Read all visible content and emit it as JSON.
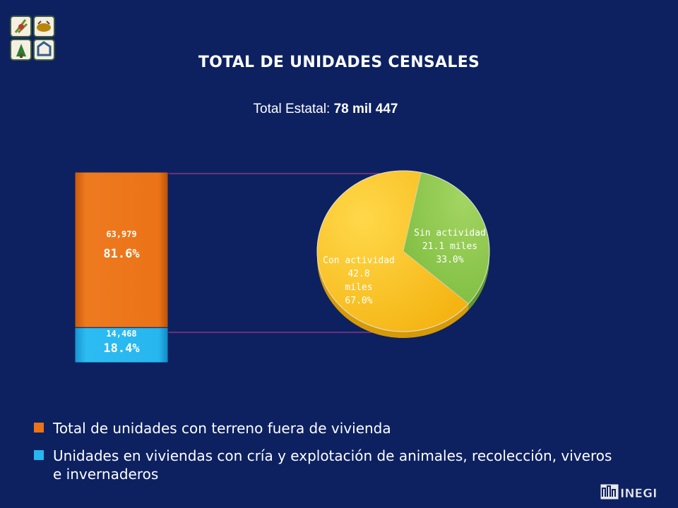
{
  "title": "TOTAL DE UNIDADES CENSALES",
  "subtitle": {
    "label": "Total Estatal:",
    "value": "78 mil 447"
  },
  "logo_text": "INEGI",
  "chart_data": [
    {
      "type": "bar",
      "stacked": true,
      "categories": [
        ""
      ],
      "ylim": [
        0,
        78447
      ],
      "series": [
        {
          "name": "Unidades en viviendas con cría y explotación de animales, recolección, viveros e invernaderos",
          "values": [
            14468
          ],
          "value_label": "14,468",
          "percent_label": "18.4%",
          "color": "#27b6ee"
        },
        {
          "name": "Total de unidades con terreno fuera de vivienda",
          "values": [
            63979
          ],
          "value_label": "63,979",
          "percent_label": "81.6%",
          "color": "#ec7317"
        }
      ]
    },
    {
      "type": "pie",
      "slices": [
        {
          "name": "Con actividad",
          "value": 42.8,
          "percent": 67.0,
          "labels": [
            "Con actividad",
            "42.8",
            "miles",
            "67.0%"
          ],
          "color": "#f7bd19"
        },
        {
          "name": "Sin actividad",
          "value": 21.1,
          "percent": 33.0,
          "labels": [
            "Sin actividad",
            "21.1 miles",
            "33.0%"
          ],
          "color": "#8cc74f"
        }
      ]
    }
  ],
  "legend": [
    {
      "label": "Total de unidades con terreno fuera de vivienda",
      "color": "#ec7317"
    },
    {
      "label": "Unidades en viviendas con cría y explotación de animales, recolección, viveros e invernaderos",
      "color": "#27b6ee"
    }
  ]
}
